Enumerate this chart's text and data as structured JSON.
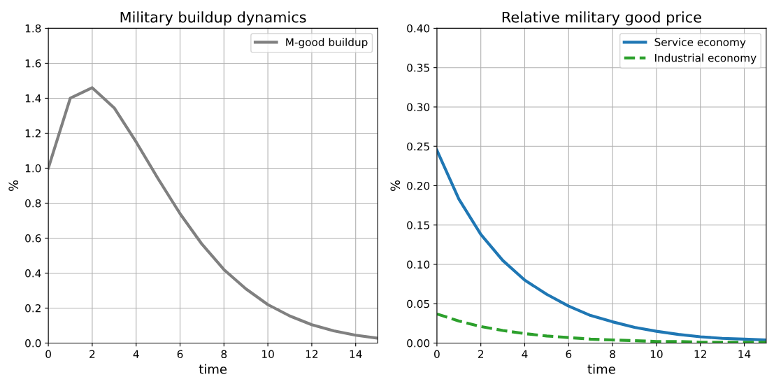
{
  "chart_data": [
    {
      "type": "line",
      "title": "Military buildup dynamics",
      "xlabel": "time",
      "ylabel": "%",
      "x": [
        0,
        1,
        2,
        3,
        4,
        5,
        6,
        7,
        8,
        9,
        10,
        11,
        12,
        13,
        14,
        15
      ],
      "series": [
        {
          "name": "M-good buildup",
          "color": "#808080",
          "values": [
            1.0,
            1.4,
            1.46,
            1.345,
            1.15,
            0.94,
            0.74,
            0.565,
            0.42,
            0.31,
            0.22,
            0.155,
            0.105,
            0.07,
            0.045,
            0.028
          ]
        }
      ],
      "xlim": [
        0,
        15
      ],
      "xticks": [
        0,
        2,
        4,
        6,
        8,
        10,
        12,
        14
      ],
      "ylim": [
        0,
        1.8
      ],
      "yticks": [
        {
          "value": 0,
          "label": "0.0"
        },
        0.2,
        0.4,
        0.6,
        0.8,
        {
          "value": 1,
          "label": "1.0"
        },
        1.2,
        1.4,
        1.6,
        1.8
      ],
      "grid": true,
      "legend": "top right"
    },
    {
      "type": "line",
      "title": "Relative military good price",
      "xlabel": "time",
      "ylabel": "%",
      "x": [
        0,
        1,
        2,
        3,
        4,
        5,
        6,
        7,
        8,
        9,
        10,
        11,
        12,
        13,
        14,
        15
      ],
      "series": [
        {
          "name": "Service economy",
          "color": "#1f77b4",
          "line_style": "solid",
          "values": [
            0.245,
            0.183,
            0.138,
            0.105,
            0.08,
            0.062,
            0.047,
            0.035,
            0.027,
            0.02,
            0.015,
            0.011,
            0.008,
            0.006,
            0.005,
            0.004
          ]
        },
        {
          "name": "Industrial economy",
          "color": "#2ca02c",
          "line_style": "dashed",
          "values": [
            0.037,
            0.028,
            0.021,
            0.016,
            0.012,
            0.009,
            0.007,
            0.005,
            0.004,
            0.003,
            0.002,
            0.002,
            0.001,
            0.001,
            0.001,
            0.001
          ]
        }
      ],
      "xlim": [
        0,
        15
      ],
      "xticks": [
        0,
        2,
        4,
        6,
        8,
        10,
        12,
        14
      ],
      "ylim": [
        0,
        0.4
      ],
      "yticks": [
        {
          "value": 0,
          "label": "0.00"
        },
        {
          "value": 0.05,
          "label": "0.05"
        },
        {
          "value": 0.1,
          "label": "0.10"
        },
        {
          "value": 0.15,
          "label": "0.15"
        },
        {
          "value": 0.2,
          "label": "0.20"
        },
        {
          "value": 0.25,
          "label": "0.25"
        },
        {
          "value": 0.3,
          "label": "0.30"
        },
        {
          "value": 0.35,
          "label": "0.35"
        },
        {
          "value": 0.4,
          "label": "0.40"
        }
      ],
      "grid": true,
      "legend": "top right"
    }
  ]
}
